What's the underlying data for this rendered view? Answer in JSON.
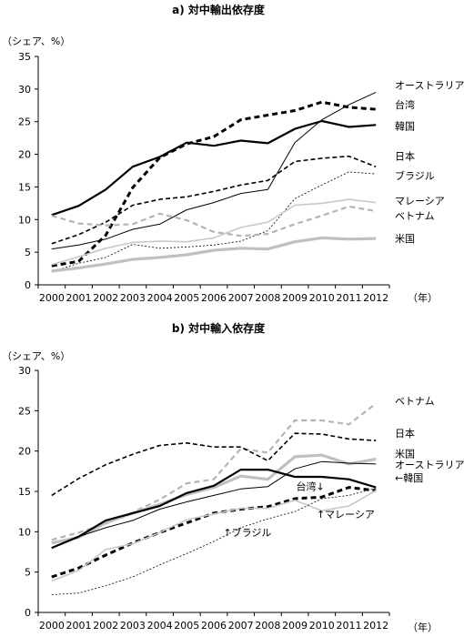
{
  "chart_data": [
    {
      "type": "line",
      "title": "a)  対中輸出依存度",
      "ylabel": "（シェア、%）",
      "xunit": "（年）",
      "ylim": [
        0,
        35
      ],
      "yticks": [
        0,
        5,
        10,
        15,
        20,
        25,
        30,
        35
      ],
      "grid": false,
      "x": [
        "2000",
        "2001",
        "2002",
        "2003",
        "2004",
        "2005",
        "2006",
        "2007",
        "2008",
        "2009",
        "2010",
        "2011",
        "2012"
      ],
      "series": [
        {
          "name": "オーストラリア",
          "color": "#000000",
          "width": 1.0,
          "dash": "",
          "values": [
            5.5,
            6.1,
            7.0,
            8.5,
            9.3,
            11.5,
            12.6,
            14.0,
            14.6,
            21.8,
            25.3,
            27.6,
            29.5
          ]
        },
        {
          "name": "台湾",
          "color": "#000000",
          "width": 3.0,
          "dash": "6,4",
          "values": [
            2.9,
            3.6,
            7.6,
            14.9,
            19.5,
            21.6,
            22.7,
            25.3,
            26.0,
            26.7,
            28.0,
            27.2,
            26.9
          ]
        },
        {
          "name": "韓国",
          "color": "#000000",
          "width": 2.2,
          "dash": "",
          "values": [
            10.7,
            12.1,
            14.6,
            18.1,
            19.6,
            21.8,
            21.3,
            22.1,
            21.7,
            23.9,
            25.1,
            24.2,
            24.5
          ]
        },
        {
          "name": "日本",
          "color": "#000000",
          "width": 1.6,
          "dash": "5,3",
          "values": [
            6.3,
            7.7,
            9.6,
            12.2,
            13.1,
            13.5,
            14.3,
            15.3,
            16.0,
            18.9,
            19.4,
            19.7,
            18.1
          ]
        },
        {
          "name": "ブラジル",
          "color": "#000000",
          "width": 0.8,
          "dash": "2,2",
          "values": [
            2.0,
            3.3,
            4.2,
            6.2,
            5.6,
            5.8,
            6.1,
            6.7,
            8.3,
            13.2,
            15.3,
            17.3,
            17.0
          ]
        },
        {
          "name": "マレーシア",
          "color": "#c8c8c8",
          "width": 1.6,
          "dash": "",
          "values": [
            3.1,
            4.3,
            5.6,
            6.5,
            6.7,
            6.6,
            7.2,
            8.8,
            9.6,
            12.2,
            12.5,
            13.1,
            12.6
          ]
        },
        {
          "name": "ベトナム",
          "color": "#b4b4b4",
          "width": 2.2,
          "dash": "6,4",
          "values": [
            10.6,
            9.4,
            9.1,
            9.3,
            10.9,
            9.9,
            8.1,
            7.5,
            7.8,
            9.3,
            10.6,
            12.0,
            11.3
          ]
        },
        {
          "name": "米国",
          "color": "#c0c0c0",
          "width": 3.2,
          "dash": "",
          "values": [
            2.1,
            2.6,
            3.2,
            3.9,
            4.2,
            4.6,
            5.3,
            5.6,
            5.5,
            6.6,
            7.2,
            7.0,
            7.1
          ]
        }
      ],
      "labels": [
        {
          "text": "オーストラリア",
          "y": 30.6
        },
        {
          "text": "台湾",
          "y": 27.6
        },
        {
          "text": "韓国",
          "y": 24.3
        },
        {
          "text": "日本",
          "y": 19.7
        },
        {
          "text": "ブラジル",
          "y": 16.7
        },
        {
          "text": "マレーシア",
          "y": 12.9
        },
        {
          "text": "ベトナム",
          "y": 10.6
        },
        {
          "text": "米国",
          "y": 7.1
        }
      ]
    },
    {
      "type": "line",
      "title": "b)  対中輸入依存度",
      "ylabel": "（シェア、%）",
      "xunit": "（年）",
      "ylim": [
        0,
        30
      ],
      "yticks": [
        0,
        5,
        10,
        15,
        20,
        25,
        30
      ],
      "grid": false,
      "x": [
        "2000",
        "2001",
        "2002",
        "2003",
        "2004",
        "2005",
        "2006",
        "2007",
        "2008",
        "2009",
        "2010",
        "2011",
        "2012"
      ],
      "series": [
        {
          "name": "ベトナム",
          "color": "#b4b4b4",
          "width": 2.2,
          "dash": "6,4",
          "values": [
            9.0,
            9.9,
            11.0,
            12.4,
            14.0,
            16.0,
            16.5,
            20.3,
            19.8,
            23.8,
            23.8,
            23.3,
            25.9
          ]
        },
        {
          "name": "日本",
          "color": "#000000",
          "width": 1.6,
          "dash": "5,3",
          "values": [
            14.5,
            16.6,
            18.3,
            19.6,
            20.7,
            21.0,
            20.5,
            20.5,
            18.8,
            22.2,
            22.1,
            21.5,
            21.3
          ]
        },
        {
          "name": "米国",
          "color": "#c0c0c0",
          "width": 3.2,
          "dash": "",
          "values": [
            8.6,
            9.3,
            11.1,
            12.3,
            13.4,
            14.6,
            15.5,
            16.9,
            16.5,
            19.3,
            19.5,
            18.4,
            19.0
          ]
        },
        {
          "name": "オーストラリア",
          "color": "#000000",
          "width": 1.0,
          "dash": "",
          "values": [
            8.0,
            9.4,
            10.5,
            11.4,
            12.8,
            13.7,
            14.5,
            15.3,
            15.6,
            17.8,
            18.7,
            18.5,
            18.4
          ]
        },
        {
          "name": "韓国",
          "color": "#000000",
          "width": 2.2,
          "dash": "",
          "values": [
            8.0,
            9.4,
            11.4,
            12.3,
            13.2,
            14.8,
            15.7,
            17.7,
            17.7,
            16.8,
            16.8,
            16.5,
            15.5
          ]
        },
        {
          "name": "台湾",
          "color": "#000000",
          "width": 3.0,
          "dash": "6,4",
          "values": [
            4.4,
            5.5,
            7.1,
            8.6,
            9.9,
            11.1,
            12.3,
            12.8,
            13.1,
            14.1,
            14.3,
            15.5,
            15.1
          ]
        },
        {
          "name": "マレーシア",
          "color": "#c8c8c8",
          "width": 1.6,
          "dash": "",
          "values": [
            3.9,
            5.2,
            7.8,
            8.5,
            9.9,
            11.5,
            12.2,
            12.9,
            12.9,
            13.9,
            12.6,
            13.2,
            15.1
          ]
        },
        {
          "name": "ブラジル",
          "color": "#000000",
          "width": 0.8,
          "dash": "2,2",
          "values": [
            2.2,
            2.4,
            3.3,
            4.4,
            5.9,
            7.3,
            8.8,
            10.5,
            11.6,
            12.5,
            14.1,
            14.5,
            15.4
          ]
        }
      ],
      "labels": [
        {
          "text": "ベトナム",
          "y": 26.2
        },
        {
          "text": "日本",
          "y": 22.2
        },
        {
          "text": "米国",
          "y": 19.7
        },
        {
          "text": "オーストラリア",
          "y": 18.3
        },
        {
          "text": "←韓国",
          "y": 16.7
        }
      ],
      "annotations": [
        {
          "text": "台湾↓",
          "x": 9.55,
          "y": 15.6
        },
        {
          "text": "↑マレーシア",
          "x": 10.3,
          "y": 12.2
        },
        {
          "text": "↑ブラジル",
          "x": 6.85,
          "y": 9.9
        }
      ]
    }
  ]
}
